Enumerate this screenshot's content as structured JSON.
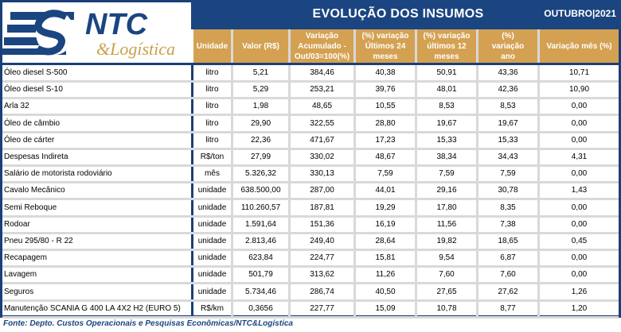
{
  "header": {
    "logo_text": "NTC",
    "logo_subtext": "&Logística",
    "title": "EVOLUÇÃO DOS INSUMOS",
    "period": "OUTUBRO|2021"
  },
  "colors": {
    "navy": "#1b4580",
    "gold": "#d4a152",
    "grid": "#d9d9d9"
  },
  "columns": [
    {
      "label": "Unidade"
    },
    {
      "label": "Valor (R$)"
    },
    {
      "label": "Variação Acumulado - Out/03=100(%)"
    },
    {
      "label": "(%) variação Últimos 24 meses"
    },
    {
      "label": "(%) variação últimos 12 meses"
    },
    {
      "label": "(%) variação ano"
    },
    {
      "label": "Variação mês (%)"
    }
  ],
  "rows": [
    {
      "item": "Óleo diesel S-500",
      "unidade": "litro",
      "valor": "5,21",
      "acum": "384,46",
      "v24": "40,38",
      "v12": "50,91",
      "ano": "43,36",
      "mes": "10,71"
    },
    {
      "item": "Óleo diesel S-10",
      "unidade": "litro",
      "valor": "5,29",
      "acum": "253,21",
      "v24": "39,76",
      "v12": "48,01",
      "ano": "42,36",
      "mes": "10,90"
    },
    {
      "item": "Arla 32",
      "unidade": "litro",
      "valor": "1,98",
      "acum": "48,65",
      "v24": "10,55",
      "v12": "8,53",
      "ano": "8,53",
      "mes": "0,00"
    },
    {
      "item": "Óleo de câmbio",
      "unidade": "litro",
      "valor": "29,90",
      "acum": "322,55",
      "v24": "28,80",
      "v12": "19,67",
      "ano": "19,67",
      "mes": "0,00"
    },
    {
      "item": "Óleo de cárter",
      "unidade": "litro",
      "valor": "22,36",
      "acum": "471,67",
      "v24": "17,23",
      "v12": "15,33",
      "ano": "15,33",
      "mes": "0,00"
    },
    {
      "item": "Despesas Indireta",
      "unidade": "R$/ton",
      "valor": "27,99",
      "acum": "330,02",
      "v24": "48,67",
      "v12": "38,34",
      "ano": "34,43",
      "mes": "4,31"
    },
    {
      "item": "Salário de motorista rodoviário",
      "unidade": "mês",
      "valor": "5.326,32",
      "acum": "330,13",
      "v24": "7,59",
      "v12": "7,59",
      "ano": "7,59",
      "mes": "0,00"
    },
    {
      "item": "Cavalo Mecânico",
      "unidade": "unidade",
      "valor": "638.500,00",
      "acum": "287,00",
      "v24": "44,01",
      "v12": "29,16",
      "ano": "30,78",
      "mes": "1,43"
    },
    {
      "item": "Semi Reboque",
      "unidade": "unidade",
      "valor": "110.260,57",
      "acum": "187,81",
      "v24": "19,29",
      "v12": "17,80",
      "ano": "8,35",
      "mes": "0,00"
    },
    {
      "item": "Rodoar",
      "unidade": "unidade",
      "valor": "1.591,64",
      "acum": "151,36",
      "v24": "16,19",
      "v12": "11,56",
      "ano": "7,38",
      "mes": "0,00"
    },
    {
      "item": "Pneu 295/80 - R 22",
      "unidade": "unidade",
      "valor": "2.813,46",
      "acum": "249,40",
      "v24": "28,64",
      "v12": "19,82",
      "ano": "18,65",
      "mes": "0,45"
    },
    {
      "item": "Recapagem",
      "unidade": "unidade",
      "valor": "623,84",
      "acum": "224,77",
      "v24": "15,81",
      "v12": "9,54",
      "ano": "6,87",
      "mes": "0,00"
    },
    {
      "item": "Lavagem",
      "unidade": "unidade",
      "valor": "501,79",
      "acum": "313,62",
      "v24": "11,26",
      "v12": "7,60",
      "ano": "7,60",
      "mes": "0,00"
    },
    {
      "item": "Seguros",
      "unidade": "unidade",
      "valor": "5.734,46",
      "acum": "286,74",
      "v24": "40,50",
      "v12": "27,65",
      "ano": "27,62",
      "mes": "1,26"
    },
    {
      "item": "Manutenção SCANIA G 400 LA 4X2 H2 (EURO 5)",
      "unidade": "R$/km",
      "valor": "0,3656",
      "acum": "227,77",
      "v24": "15,09",
      "v12": "10,78",
      "ano": "8,77",
      "mes": "1,20"
    }
  ],
  "footer": {
    "source": "Fonte: Depto. Custos Operacionais e Pesquisas Econômicas/NTC&Logística"
  }
}
